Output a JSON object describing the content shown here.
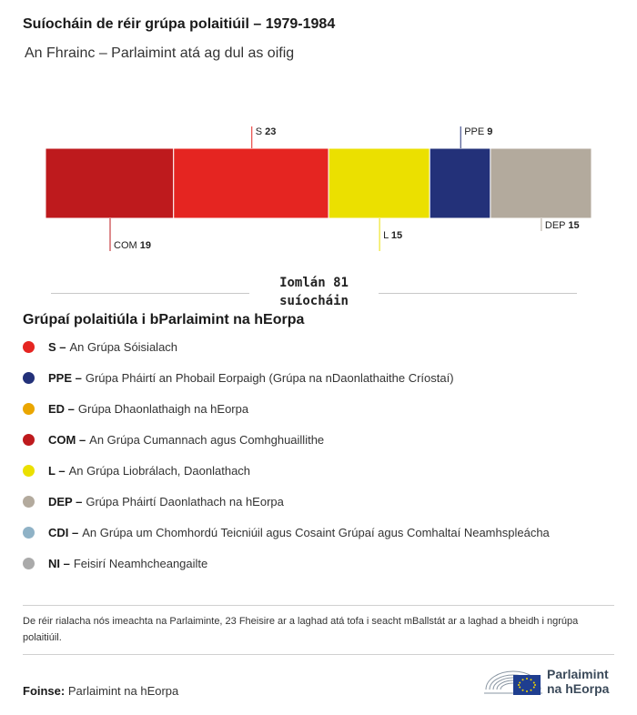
{
  "header": {
    "title": "Suíocháin de réir grúpa polaitiúil – 1979-1984",
    "subtitle": "An Fhrainc – Parlaimint atá ag dul as oifig"
  },
  "chart_data": {
    "type": "bar",
    "orientation": "stacked-horizontal",
    "categories": [
      "COM",
      "S",
      "L",
      "PPE",
      "DEP"
    ],
    "values": [
      19,
      23,
      15,
      9,
      15
    ],
    "colors": [
      "#be1a1d",
      "#e52521",
      "#ebe000",
      "#233179",
      "#b3aa9d"
    ],
    "label_positions": [
      "below",
      "above",
      "below",
      "above",
      "below"
    ],
    "total": 81,
    "total_label": "Iomlán 81 suíocháin"
  },
  "legend": {
    "title": "Grúpaí polaitiúla i bParlaimint na hEorpa",
    "items": [
      {
        "abbr": "S –",
        "text": "An Grúpa Sóisialach",
        "color": "#e52521"
      },
      {
        "abbr": "PPE –",
        "text": "Grúpa Pháirtí an Phobail Eorpaigh (Grúpa na nDaonlathaithe Críostaí)",
        "color": "#233179"
      },
      {
        "abbr": "ED –",
        "text": "Grúpa Dhaonlathaigh na hEorpa",
        "color": "#eaa600"
      },
      {
        "abbr": "COM –",
        "text": "An Grúpa Cumannach agus Comhghuaillithe",
        "color": "#be1a1d"
      },
      {
        "abbr": "L –",
        "text": "An Grúpa Liobrálach, Daonlathach",
        "color": "#ebe000"
      },
      {
        "abbr": "DEP –",
        "text": "Grúpa Pháirtí Daonlathach na hEorpa",
        "color": "#b3aa9d"
      },
      {
        "abbr": "CDI –",
        "text": "An Grúpa um Chomhordú Teicniúil agus Cosaint Grúpaí agus Comhaltaí Neamhspleácha",
        "color": "#8fb2c6"
      },
      {
        "abbr": "NI –",
        "text": "Feisirí Neamhcheangailte",
        "color": "#aaaaaa"
      }
    ]
  },
  "note": "De réir rialacha nós imeachta na Parlaiminte, 23 Fheisire ar a laghad atá tofa i seacht mBallstát ar a laghad a bheidh i ngrúpa polaitiúil.",
  "source": {
    "label": "Foinse:",
    "text": "Parlaimint na hEorpa"
  },
  "logo": {
    "line1": "Parlaimint",
    "line2": "na hEorpa"
  }
}
